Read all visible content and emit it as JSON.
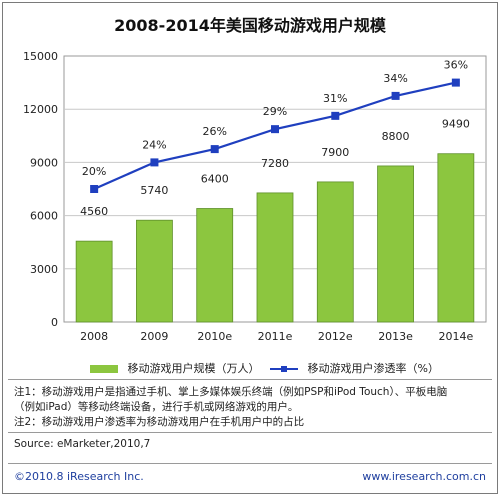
{
  "chart_data": {
    "type": "bar",
    "title": "2008-2014年美国移动游戏用户规模",
    "categories": [
      "2008",
      "2009",
      "2010e",
      "2011e",
      "2012e",
      "2013e",
      "2014e"
    ],
    "ylim": [
      0,
      15000
    ],
    "yticks": [
      "0",
      "3000",
      "6000",
      "9000",
      "12000",
      "15000"
    ],
    "series": [
      {
        "name": "移动游戏用户规模（万人）",
        "type": "bar",
        "values": [
          4560,
          5740,
          6400,
          7280,
          7900,
          8800,
          9490
        ],
        "color": "#8cc63f"
      },
      {
        "name": "移动游戏用户渗透率（%）",
        "type": "line",
        "values": [
          20,
          24,
          26,
          29,
          31,
          34,
          36
        ],
        "labels": [
          "20%",
          "24%",
          "26%",
          "29%",
          "31%",
          "34%",
          "36%"
        ],
        "color": "#1f3fbf"
      }
    ],
    "grid": true,
    "legend": "bottom"
  },
  "notes": [
    "注1：移动游戏用户是指通过手机、掌上多媒体娱乐终端（例如PSP和iPod Touch）、平板电脑",
    "（例如iPad）等移动终端设备，进行手机或网络游戏的用户。",
    "注2：移动游戏用户渗透率为移动游戏用户在手机用户中的占比"
  ],
  "source": "Source: eMarketer,2010,7",
  "copyright": "©2010.8 iResearch Inc.",
  "website": "www.iresearch.com.cn"
}
